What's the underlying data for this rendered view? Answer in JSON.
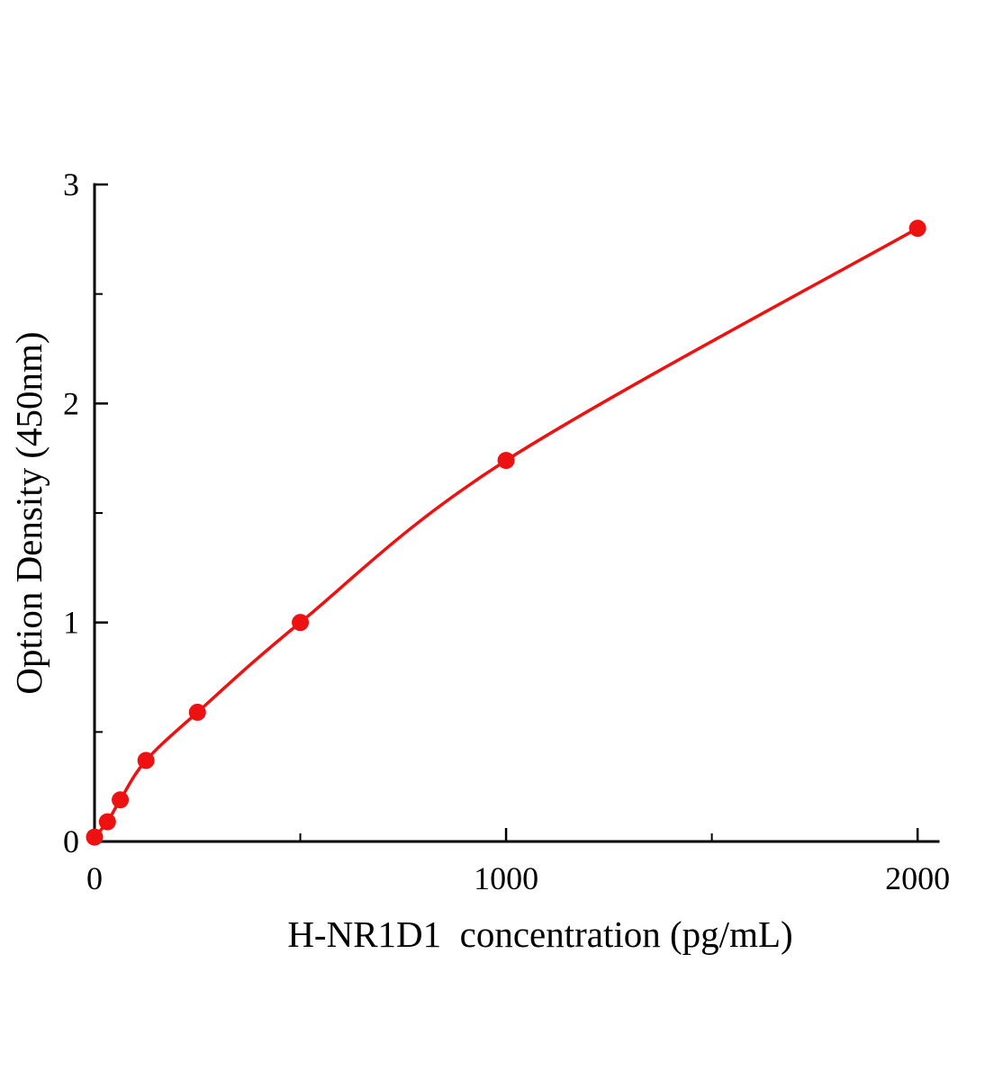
{
  "chart_data": {
    "type": "scatter",
    "title": "",
    "xlabel": "H-NR1D1  concentration (pg/mL)",
    "ylabel": "Option Density (450nm)",
    "x": [
      0,
      31.25,
      62.5,
      125,
      250,
      500,
      1000,
      2000
    ],
    "y": [
      0.02,
      0.09,
      0.19,
      0.37,
      0.59,
      1.0,
      1.74,
      2.8
    ],
    "xlim": [
      0,
      2050
    ],
    "ylim": [
      0,
      3
    ],
    "x_ticks": [
      0,
      1000,
      2000
    ],
    "y_ticks": [
      0,
      1,
      2,
      3
    ],
    "x_minor_ticks": [
      500,
      1500
    ],
    "y_minor_ticks": [
      0.5,
      1.5,
      2.5
    ],
    "line_color": "#ee1111",
    "marker_color": "#ee1111",
    "axis_color": "#000000",
    "curve_style": "smooth-fit",
    "grid": false,
    "legend": null
  }
}
